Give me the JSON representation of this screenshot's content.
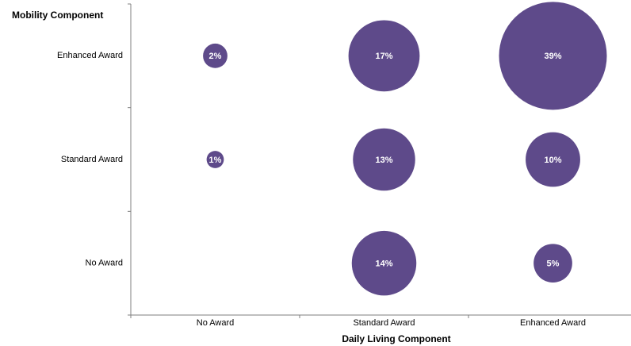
{
  "chart_data": {
    "type": "bubble",
    "y_axis_label": "Mobility Component",
    "x_axis_label": "Daily Living Component",
    "categories": [
      "No Award",
      "Standard Award",
      "Enhanced Award"
    ],
    "color": "#5e4a8a",
    "series": [
      {
        "name": "No Award",
        "values": [
          null,
          14,
          5
        ],
        "value_labels": [
          null,
          "14%",
          "5%"
        ]
      },
      {
        "name": "Standard Award",
        "values": [
          1,
          13,
          10
        ],
        "value_labels": [
          "1%",
          "13%",
          "10%"
        ]
      },
      {
        "name": "Enhanced Award",
        "values": [
          2,
          17,
          39
        ],
        "value_labels": [
          "2%",
          "17%",
          "39%"
        ]
      }
    ]
  }
}
